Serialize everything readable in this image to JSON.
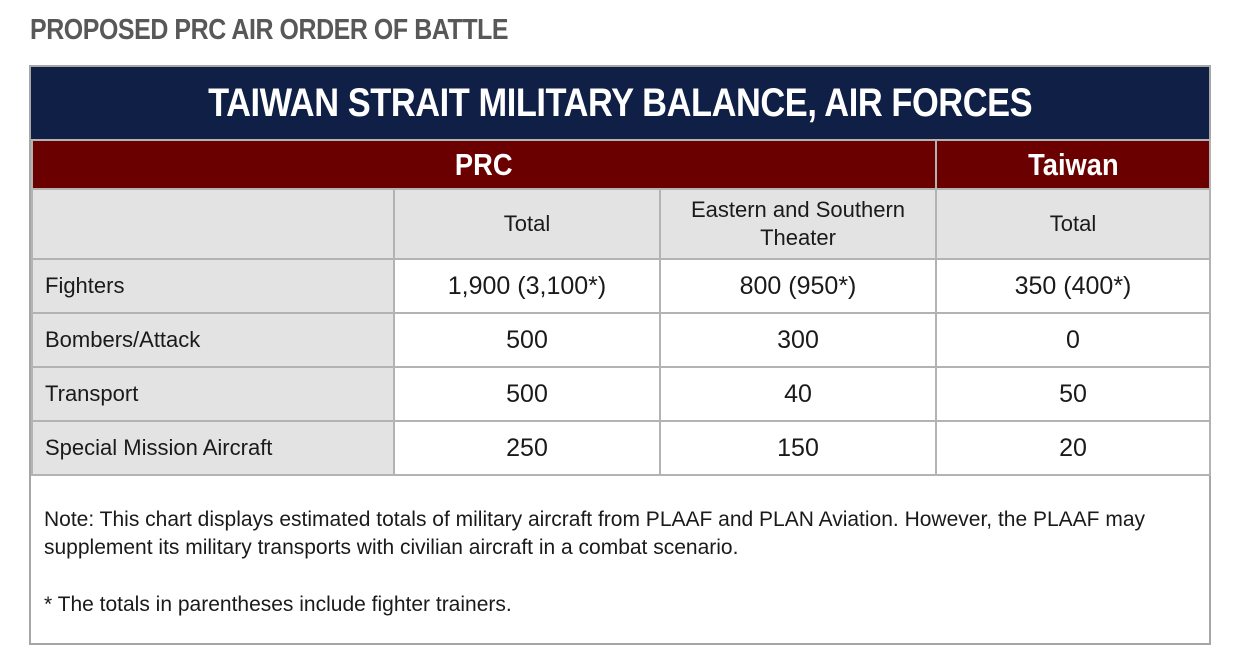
{
  "heading": "PROPOSED PRC AIR ORDER OF BATTLE",
  "table": {
    "title": "TAIWAN STRAIT MILITARY BALANCE, AIR FORCES",
    "groups": {
      "prc": "PRC",
      "taiwan": "Taiwan"
    },
    "columns": {
      "prc_total": "Total",
      "eastern_southern": "Eastern and Southern Theater",
      "taiwan_total": "Total"
    },
    "rows": [
      {
        "label": "Fighters",
        "prc_total": "1,900 (3,100*)",
        "eastern_southern": "800 (950*)",
        "taiwan_total": "350 (400*)"
      },
      {
        "label": "Bombers/Attack",
        "prc_total": "500",
        "eastern_southern": "300",
        "taiwan_total": "0"
      },
      {
        "label": "Transport",
        "prc_total": "500",
        "eastern_southern": "40",
        "taiwan_total": "50"
      },
      {
        "label": "Special Mission Aircraft",
        "prc_total": "250",
        "eastern_southern": "150",
        "taiwan_total": "20"
      }
    ],
    "note": "Note: This chart displays estimated totals of military aircraft from PLAAF and PLAN Aviation. However, the PLAAF may supplement its military transports with civilian aircraft in a combat scenario.",
    "footnote": "* The totals in parentheses include fighter trainers."
  },
  "colors": {
    "title_bar": "#0f1f45",
    "group_bar": "#6b0000",
    "label_cells": "#e3e3e3",
    "heading_text": "#585858"
  }
}
